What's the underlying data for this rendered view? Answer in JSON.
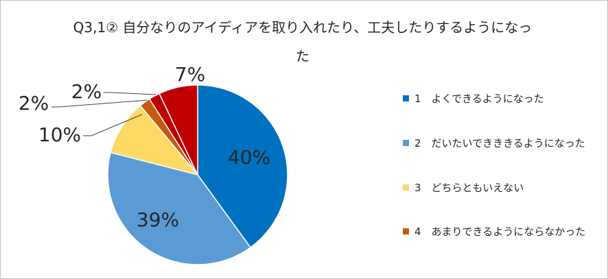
{
  "chart_data": {
    "type": "pie",
    "title": "Q3,1② 自分なりのアイディアを取り入れたり、工夫したりするようになった",
    "title_lines": [
      "Q3,1② 自分なりのアイディアを取り入れたり、工夫したりするようになっ",
      "た"
    ],
    "slices": [
      {
        "label": "1　よくできるようになった",
        "value": 40,
        "display": "40%",
        "color": "#0070c0"
      },
      {
        "label": "2　だいたいできききるようになった",
        "value": 39,
        "display": "39%",
        "color": "#5b9bd5"
      },
      {
        "label": "3　どちらともいえない",
        "value": 10,
        "display": "10%",
        "color": "#ffd966"
      },
      {
        "label": "4　あまりできるようにならなかった",
        "value": 2,
        "display": "2%",
        "color": "#c55a11"
      },
      {
        "label": "",
        "value": 2,
        "display": "2%",
        "color": "#c00000"
      },
      {
        "label": "",
        "value": 7,
        "display": "7%",
        "color": "#c00000"
      }
    ],
    "legend": [
      {
        "label": "1　よくできるようになった",
        "color": "#0070c0"
      },
      {
        "label": "2　だいたいできききるようになった",
        "color": "#5b9bd5"
      },
      {
        "label": "3　どちらともいえない",
        "color": "#ffd966"
      },
      {
        "label": "4　あまりできるようにならなかった",
        "color": "#c55a11"
      }
    ],
    "legend_position": "right",
    "data_labels": true
  }
}
